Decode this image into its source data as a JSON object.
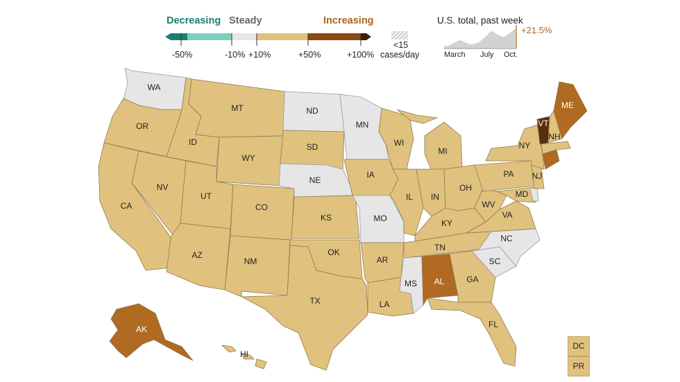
{
  "legend": {
    "decreasing": "Decreasing",
    "steady": "Steady",
    "increasing": "Increasing",
    "ticks": [
      "-50%",
      "-10%",
      "+10%",
      "+50%",
      "+100%"
    ],
    "hatch_label_1": "<15",
    "hatch_label_2": "cases/day",
    "colors": {
      "decrease_strong": "#1a7f72",
      "decrease": "#7fcdbf",
      "steady": "#e6e6e6",
      "increase": "#e0c27e",
      "increase_strong": "#8a4a14",
      "increase_max": "#3f1e06",
      "increasing_text": "#a8651f",
      "decreasing_text": "#1a7f72"
    }
  },
  "us_total": {
    "title": "U.S. total, past week",
    "change": "+21.5%",
    "x_labels": [
      "March",
      "July",
      "Oct."
    ]
  },
  "states": {
    "WA": "WA",
    "OR": "OR",
    "CA": "CA",
    "NV": "NV",
    "ID": "ID",
    "MT": "MT",
    "WY": "WY",
    "UT": "UT",
    "AZ": "AZ",
    "CO": "CO",
    "NM": "NM",
    "ND": "ND",
    "SD": "SD",
    "NE": "NE",
    "KS": "KS",
    "OK": "OK",
    "TX": "TX",
    "MN": "MN",
    "IA": "IA",
    "MO": "MO",
    "AR": "AR",
    "LA": "LA",
    "WI": "WI",
    "IL": "IL",
    "MI": "MI",
    "IN": "IN",
    "OH": "OH",
    "KY": "KY",
    "TN": "TN",
    "MS": "MS",
    "AL": "AL",
    "GA": "GA",
    "FL": "FL",
    "SC": "SC",
    "NC": "NC",
    "VA": "VA",
    "WV": "WV",
    "PA": "PA",
    "NY": "NY",
    "NJ": "NJ",
    "MD": "MD",
    "VT": "VT",
    "NH": "NH",
    "ME": "ME",
    "AK": "AK",
    "HI": "HI"
  },
  "state_trend": {
    "WA": "steady",
    "ND": "steady",
    "MN": "steady",
    "NE": "steady",
    "MO": "steady",
    "MS": "steady",
    "NC": "steady",
    "SC": "steady",
    "AL": "increasing",
    "ME": "increasing",
    "AK": "increasing",
    "CT": "increasing",
    "VT": "increasing_strong",
    "other": "increase"
  },
  "extra_boxes": {
    "dc": "DC",
    "pr": "PR"
  }
}
